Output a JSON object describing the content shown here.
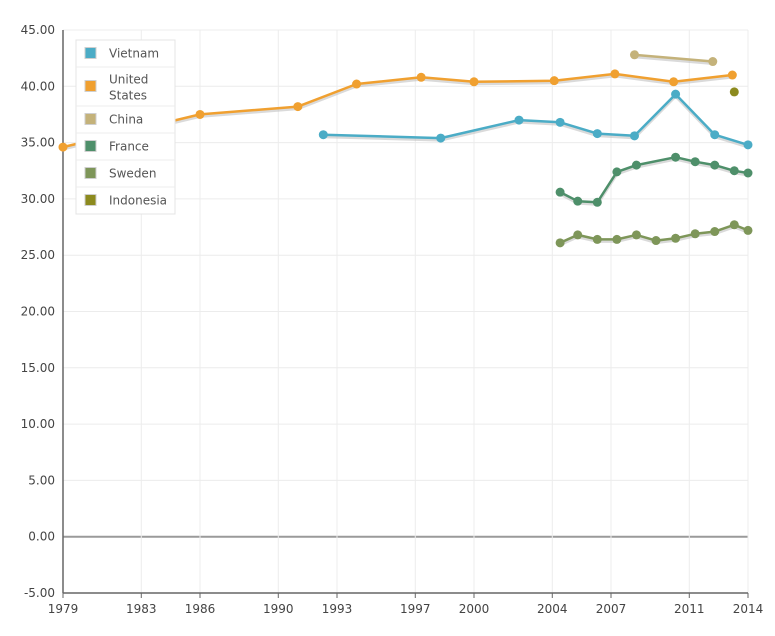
{
  "chart_data": {
    "type": "line",
    "title": "",
    "xlabel": "",
    "ylabel": "",
    "xlim": [
      1979,
      2014
    ],
    "ylim": [
      -5,
      45
    ],
    "x_ticks": [
      "1979",
      "1983",
      "1986",
      "1990",
      "1993",
      "1997",
      "2000",
      "2004",
      "2007",
      "2011",
      "2014"
    ],
    "y_ticks": [
      "45.00",
      "40.00",
      "35.00",
      "30.00",
      "25.00",
      "20.00",
      "15.00",
      "10.00",
      "5.00",
      "0.00",
      "-5.00"
    ],
    "grid": true,
    "legend_position": "top-left",
    "series": [
      {
        "name": "Vietnam",
        "color": "#4bacc6",
        "points": [
          [
            1992.3,
            35.7
          ],
          [
            1998.3,
            35.4
          ],
          [
            2002.3,
            37.0
          ],
          [
            2004.4,
            36.8
          ],
          [
            2006.3,
            35.8
          ],
          [
            2008.2,
            35.6
          ],
          [
            2010.3,
            39.3
          ],
          [
            2012.3,
            35.7
          ],
          [
            2014.0,
            34.8
          ]
        ]
      },
      {
        "name": "United States",
        "label_lines": [
          "United",
          "States"
        ],
        "color": "#f0a030",
        "points": [
          [
            1979.0,
            34.6
          ],
          [
            1986.0,
            37.5
          ],
          [
            1991.0,
            38.2
          ],
          [
            1994.0,
            40.2
          ],
          [
            1997.3,
            40.8
          ],
          [
            2000.0,
            40.4
          ],
          [
            2004.1,
            40.5
          ],
          [
            2007.2,
            41.1
          ],
          [
            2010.2,
            40.4
          ],
          [
            2013.2,
            41.0
          ]
        ]
      },
      {
        "name": "China",
        "color": "#c4b27a",
        "points": [
          [
            2008.2,
            42.8
          ],
          [
            2012.2,
            42.2
          ]
        ]
      },
      {
        "name": "France",
        "color": "#4e8f6a",
        "points": [
          [
            2004.4,
            30.6
          ],
          [
            2005.3,
            29.8
          ],
          [
            2006.3,
            29.7
          ],
          [
            2007.3,
            32.4
          ],
          [
            2008.3,
            33.0
          ],
          [
            2010.3,
            33.7
          ],
          [
            2011.3,
            33.3
          ],
          [
            2012.3,
            33.0
          ],
          [
            2013.3,
            32.5
          ],
          [
            2014.0,
            32.3
          ]
        ]
      },
      {
        "name": "Sweden",
        "color": "#7e9659",
        "points": [
          [
            2004.4,
            26.1
          ],
          [
            2005.3,
            26.8
          ],
          [
            2006.3,
            26.4
          ],
          [
            2007.3,
            26.4
          ],
          [
            2008.3,
            26.8
          ],
          [
            2009.3,
            26.3
          ],
          [
            2010.3,
            26.5
          ],
          [
            2011.3,
            26.9
          ],
          [
            2012.3,
            27.1
          ],
          [
            2013.3,
            27.7
          ],
          [
            2014.0,
            27.2
          ]
        ]
      },
      {
        "name": "Indonesia",
        "color": "#8c8a1e",
        "points": [
          [
            2013.3,
            39.5
          ]
        ]
      }
    ]
  }
}
